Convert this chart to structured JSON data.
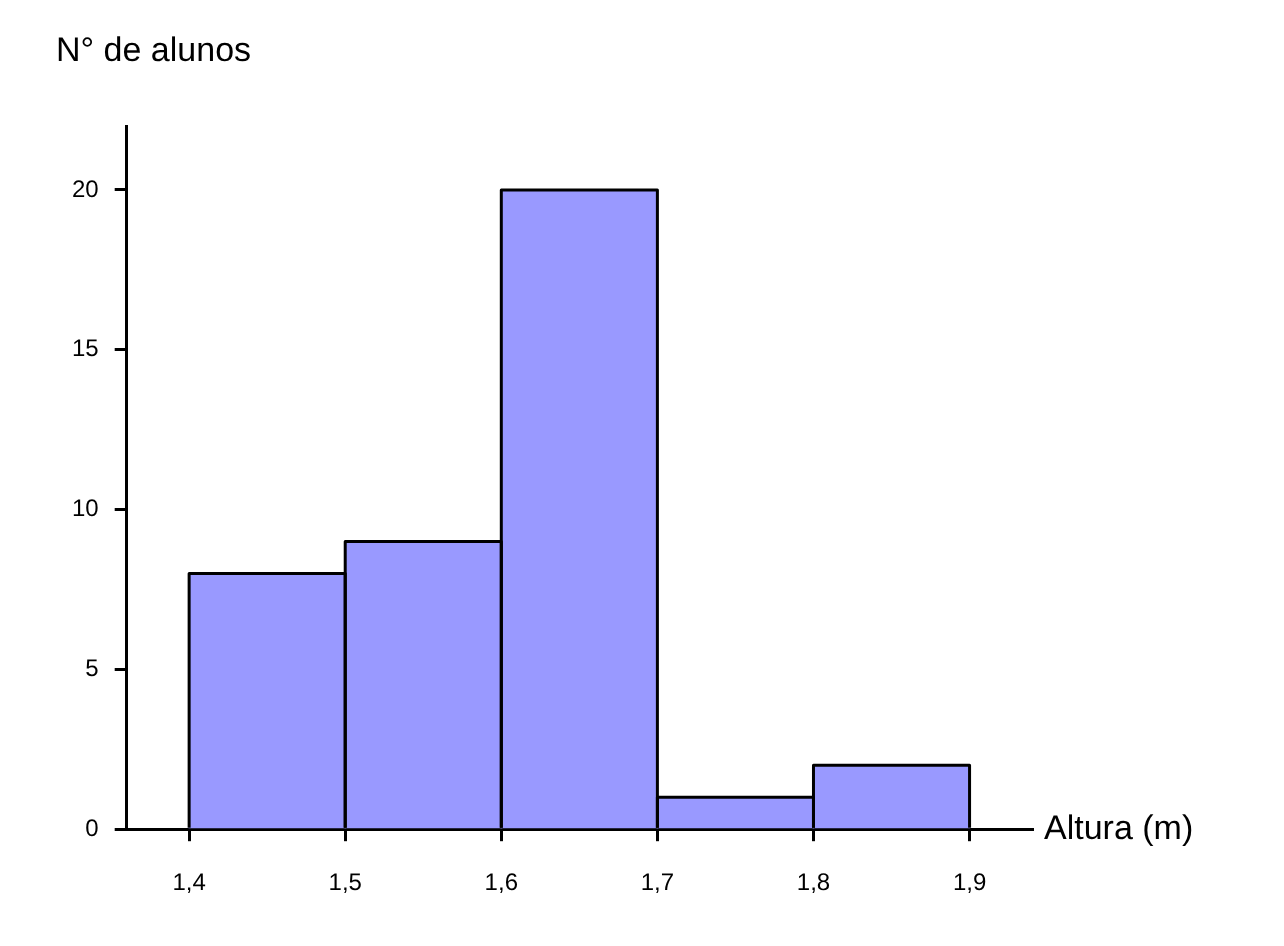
{
  "chart_data": {
    "type": "histogram",
    "xlabel": "Altura (m)",
    "ylabel": "N° de alunos",
    "bins": [
      1.4,
      1.5,
      1.6,
      1.7,
      1.8,
      1.9
    ],
    "values": [
      8,
      9,
      20,
      1,
      2
    ],
    "color": "#9999ff",
    "xlim": [
      1.36,
      1.94
    ],
    "xticks": [
      {
        "value": 1.4,
        "label": "1,4"
      },
      {
        "value": 1.5,
        "label": "1,5"
      },
      {
        "value": 1.6,
        "label": "1,6"
      },
      {
        "value": 1.7,
        "label": "1,7"
      },
      {
        "value": 1.8,
        "label": "1,8"
      },
      {
        "value": 1.9,
        "label": "1,9"
      }
    ],
    "ylim": [
      0,
      22
    ],
    "yticks": [
      0,
      5,
      10,
      15,
      20
    ],
    "grid": false,
    "legend": false
  }
}
